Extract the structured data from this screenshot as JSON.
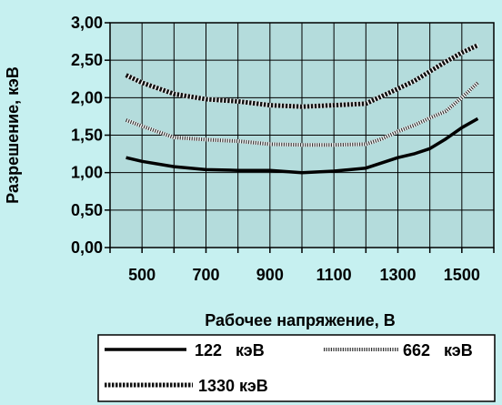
{
  "chart_data": {
    "type": "line",
    "xlabel": "Рабочее напряжение, В",
    "ylabel": "Разрешение, кэВ",
    "xlim": [
      400,
      1600
    ],
    "ylim": [
      0,
      3
    ],
    "x_ticks": [
      "500",
      "700",
      "900",
      "1100",
      "1300",
      "1500"
    ],
    "y_ticks": [
      "0,00",
      "0,50",
      "1,00",
      "1,50",
      "2,00",
      "2,50",
      "3,00"
    ],
    "grid": true,
    "legend_position": "bottom",
    "colors": {
      "background": "#c6f0f0",
      "plot_area": "#b4dcdc",
      "line": "#000000"
    },
    "series": [
      {
        "name": "122   кэВ",
        "style": "solid",
        "x": [
          450,
          500,
          600,
          700,
          800,
          900,
          1000,
          1100,
          1200,
          1300,
          1350,
          1400,
          1450,
          1500,
          1550
        ],
        "y": [
          1.2,
          1.15,
          1.08,
          1.04,
          1.03,
          1.03,
          1.0,
          1.02,
          1.06,
          1.2,
          1.25,
          1.32,
          1.45,
          1.6,
          1.72
        ]
      },
      {
        "name": "662   кэВ",
        "style": "dotted",
        "x": [
          450,
          500,
          600,
          700,
          800,
          900,
          1000,
          1100,
          1200,
          1250,
          1300,
          1350,
          1400,
          1450,
          1500,
          1550
        ],
        "y": [
          1.7,
          1.62,
          1.47,
          1.44,
          1.42,
          1.38,
          1.37,
          1.37,
          1.38,
          1.45,
          1.55,
          1.63,
          1.73,
          1.82,
          2.0,
          2.2
        ]
      },
      {
        "name": "1330 кэВ",
        "style": "dashed",
        "x": [
          450,
          500,
          600,
          700,
          800,
          900,
          1000,
          1100,
          1200,
          1250,
          1300,
          1350,
          1400,
          1450,
          1500,
          1550
        ],
        "y": [
          2.3,
          2.2,
          2.05,
          1.98,
          1.95,
          1.9,
          1.88,
          1.9,
          1.92,
          2.02,
          2.12,
          2.22,
          2.35,
          2.48,
          2.6,
          2.7
        ]
      }
    ]
  }
}
